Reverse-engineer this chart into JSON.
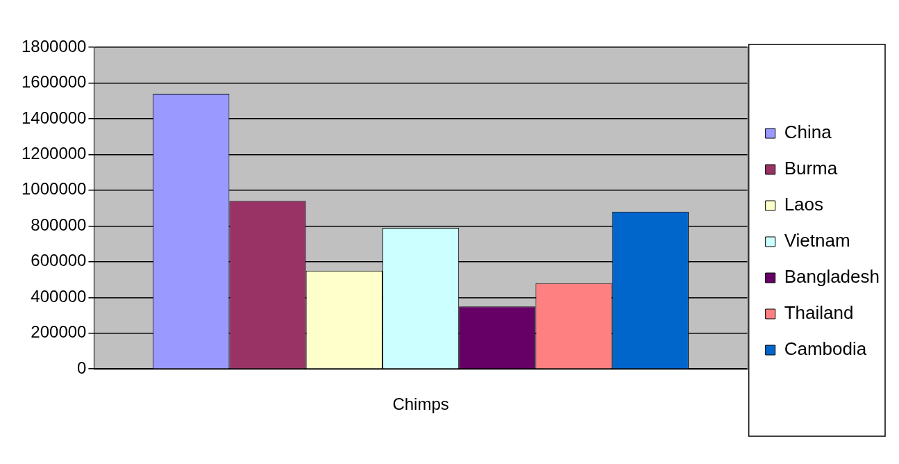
{
  "chart_data": {
    "type": "bar",
    "categories": [
      "Chimps"
    ],
    "series": [
      {
        "name": "China",
        "color": "#9999ff",
        "values": [
          1540000
        ]
      },
      {
        "name": "Burma",
        "color": "#993366",
        "values": [
          940000
        ]
      },
      {
        "name": "Laos",
        "color": "#ffffcc",
        "values": [
          550000
        ]
      },
      {
        "name": "Vietnam",
        "color": "#ccffff",
        "values": [
          790000
        ]
      },
      {
        "name": "Bangladesh",
        "color": "#660066",
        "values": [
          350000
        ]
      },
      {
        "name": "Thailand",
        "color": "#ff8080",
        "values": [
          480000
        ]
      },
      {
        "name": "Cambodia",
        "color": "#0066cc",
        "values": [
          880000
        ]
      }
    ],
    "ylim": [
      0,
      1800000
    ],
    "yticks": [
      0,
      200000,
      400000,
      600000,
      800000,
      1000000,
      1200000,
      1400000,
      1600000,
      1800000
    ],
    "grid": "y",
    "legend": "right"
  }
}
